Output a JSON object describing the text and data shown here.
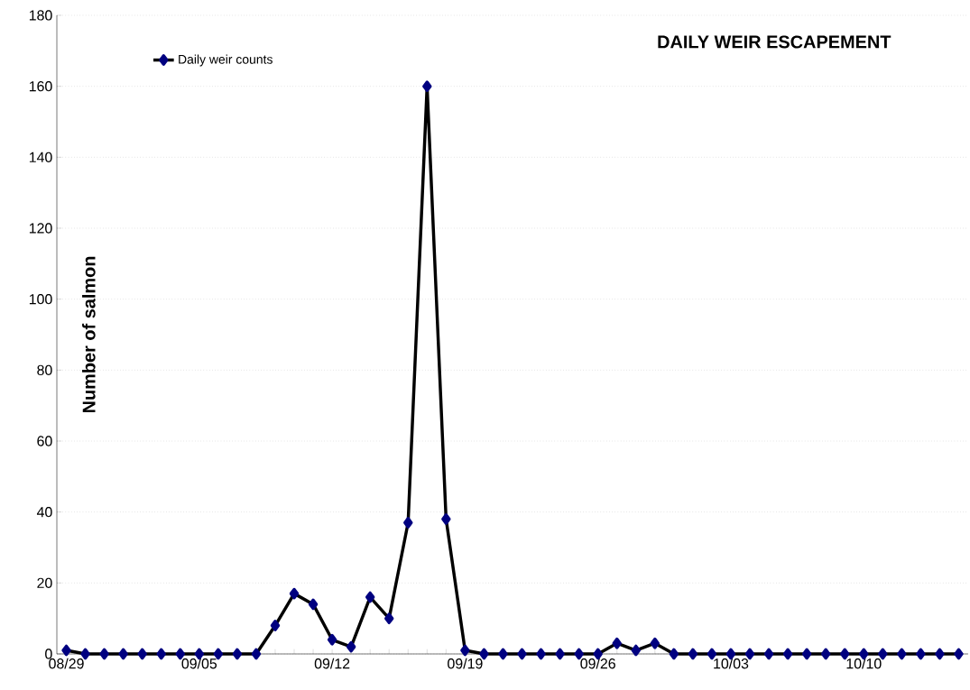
{
  "chart_data": {
    "type": "line",
    "title": "DAILY WEIR ESCAPEMENT",
    "ylabel": "Number of salmon",
    "categories": [
      "08/29",
      null,
      null,
      null,
      null,
      null,
      null,
      "09/05",
      null,
      null,
      null,
      null,
      null,
      null,
      "09/12",
      null,
      null,
      null,
      null,
      null,
      null,
      "09/19",
      null,
      null,
      null,
      null,
      null,
      null,
      "09/26",
      null,
      null,
      null,
      null,
      null,
      null,
      "10/03",
      null,
      null,
      null,
      null,
      null,
      null,
      "10/10",
      null,
      null,
      null,
      null,
      null
    ],
    "series": [
      {
        "name": "Daily weir counts",
        "color": "#000080",
        "values": [
          1,
          0,
          0,
          0,
          0,
          0,
          0,
          0,
          0,
          0,
          0,
          8,
          17,
          14,
          4,
          2,
          16,
          10,
          37,
          160,
          38,
          1,
          0,
          0,
          0,
          0,
          0,
          0,
          0,
          3,
          1,
          3,
          0,
          0,
          0,
          0,
          0,
          0,
          0,
          0,
          0,
          0,
          0,
          0,
          0,
          0,
          0,
          0
        ]
      }
    ],
    "ylim": [
      0,
      180
    ],
    "yticks": [
      0,
      20,
      40,
      60,
      80,
      100,
      120,
      140,
      160,
      180
    ],
    "grid": "y",
    "legend": "top left",
    "marker": "diamond",
    "line_style": "solid"
  }
}
